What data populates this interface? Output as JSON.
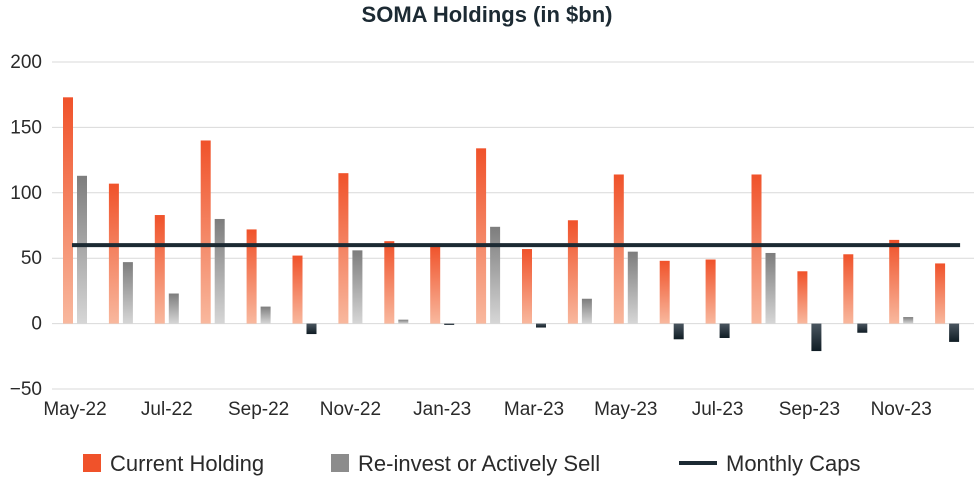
{
  "chart_data": {
    "type": "bar",
    "title": "SOMA Holdings (in $bn)",
    "xlabel": "",
    "ylabel": "",
    "ylim": [
      -50,
      200
    ],
    "yticks": [
      200,
      150,
      100,
      50,
      0,
      -50
    ],
    "y_tick_labels": [
      "200",
      "150",
      "100",
      "50",
      "0",
      "−50"
    ],
    "x_tick_labels": [
      "May-22",
      "Jul-22",
      "Sep-22",
      "Nov-22",
      "Jan-23",
      "Mar-23",
      "May-23",
      "Jul-23",
      "Sep-23",
      "Nov-23"
    ],
    "categories": [
      "May-22",
      "Jun-22",
      "Jul-22",
      "Aug-22",
      "Sep-22",
      "Oct-22",
      "Nov-22",
      "Dec-22",
      "Jan-23",
      "Feb-23",
      "Mar-23",
      "Apr-23",
      "May-23",
      "Jun-23",
      "Jul-23",
      "Aug-23",
      "Sep-23",
      "Oct-23",
      "Nov-23",
      "Dec-23"
    ],
    "series": [
      {
        "name": "Current Holding",
        "color": "#f0522a",
        "values": [
          173,
          107,
          83,
          140,
          72,
          52,
          115,
          63,
          60,
          134,
          57,
          79,
          114,
          48,
          49,
          114,
          40,
          53,
          64,
          46
        ]
      },
      {
        "name": "Re-invest or Actively Sell",
        "color": "#8c8c8c",
        "negative_color": "#1e2b33",
        "values": [
          113,
          47,
          23,
          80,
          13,
          -8,
          56,
          3,
          -1,
          74,
          -3,
          19,
          55,
          -12,
          -11,
          54,
          -21,
          -7,
          5,
          -14
        ]
      }
    ],
    "reference_line": {
      "name": "Monthly Caps",
      "value": 60,
      "color": "#1c2a33"
    },
    "grid": true,
    "legend": "bottom"
  }
}
